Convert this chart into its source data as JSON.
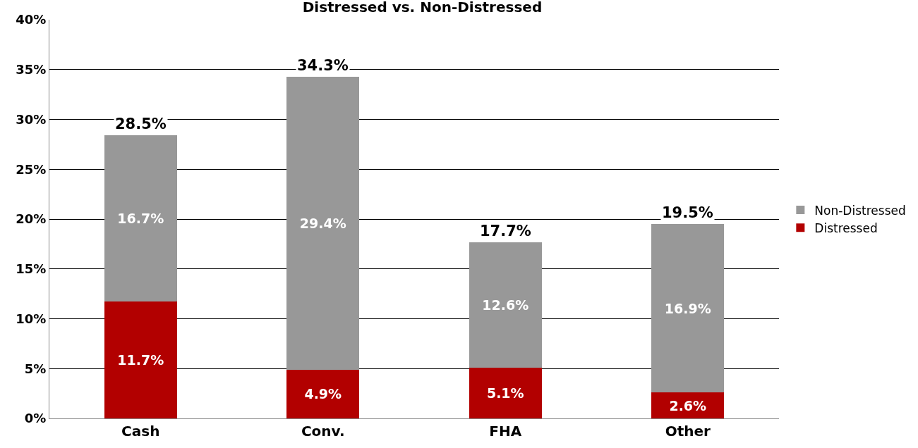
{
  "chart_data": {
    "type": "bar",
    "title": "Distressed vs. Non-Distressed",
    "stacked": true,
    "categories": [
      "Cash",
      "Conv.",
      "FHA",
      "Other"
    ],
    "series": [
      {
        "name": "Distressed",
        "color": "#b20000",
        "values": [
          11.7,
          4.9,
          5.1,
          2.6
        ],
        "value_labels": [
          "11.7%",
          "4.9%",
          "5.1%",
          "2.6%"
        ]
      },
      {
        "name": "Non-Distressed",
        "color": "#989898",
        "values": [
          16.7,
          29.4,
          12.6,
          16.9
        ],
        "value_labels": [
          "16.7%",
          "29.4%",
          "12.6%",
          "16.9%"
        ]
      }
    ],
    "totals": [
      "28.5%",
      "34.3%",
      "17.7%",
      "19.5%"
    ],
    "ylim": [
      0,
      40
    ],
    "yticks": [
      {
        "value": 0,
        "label": "0%"
      },
      {
        "value": 5,
        "label": "5%"
      },
      {
        "value": 10,
        "label": "10%"
      },
      {
        "value": 15,
        "label": "15%"
      },
      {
        "value": 20,
        "label": "20%"
      },
      {
        "value": 25,
        "label": "25%"
      },
      {
        "value": 30,
        "label": "30%"
      },
      {
        "value": 35,
        "label": "35%"
      },
      {
        "value": 40,
        "label": "40%"
      }
    ],
    "grid": "y",
    "legend": "right"
  }
}
